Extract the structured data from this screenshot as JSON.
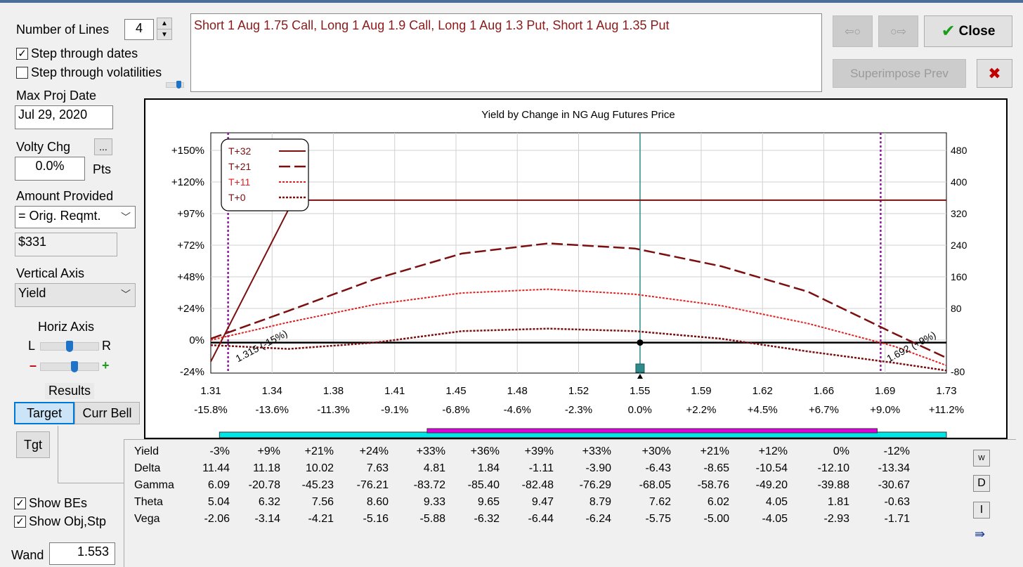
{
  "controls": {
    "number_of_lines_label": "Number of Lines",
    "number_of_lines_value": "4",
    "step_dates_label": "Step through dates",
    "step_dates_checked": true,
    "step_vols_label": "Step through volatilities",
    "step_vols_checked": false,
    "max_proj_date_label": "Max Proj Date",
    "max_proj_date_value": "Jul 29, 2020",
    "volty_chg_label": "Volty Chg",
    "volty_chg_button": "...",
    "volty_chg_value": "0.0%",
    "volty_unit": "Pts",
    "amount_provided_label": "Amount Provided",
    "amount_provided_value": "= Orig. Reqmt.",
    "amount_value": "$331",
    "vertical_axis_label": "Vertical Axis",
    "vertical_axis_value": "Yield",
    "horiz_axis_label": "Horiz Axis",
    "horiz_l": "L",
    "horiz_r": "R",
    "zoom_minus": "–",
    "zoom_plus": "+",
    "results_label": "Results",
    "tab_target": "Target",
    "tab_curr_bell": "Curr Bell",
    "tgt_button": "Tgt",
    "show_bes_label": "Show BEs",
    "show_bes_checked": true,
    "show_obj_label": "Show Obj,Stp",
    "show_obj_checked": true,
    "wand_label": "Wand",
    "wand_value": "1.553",
    "vol_slider_level": 0.8,
    "horiz_slider_level": 0.5,
    "zoom_slider_level": 0.6
  },
  "strategy_description": "Short 1 Aug 1.75 Call, Long 1 Aug 1.9 Call, Long 1 Aug 1.3 Put, Short 1 Aug 1.35 Put",
  "buttons": {
    "prev_arrow": "⇦○",
    "next_arrow": "○⇨",
    "close_label": "Close",
    "superimpose_label": "Superimpose Prev",
    "cancel_icon": "✖"
  },
  "colors": {
    "t32": "#7b0f0f",
    "t21": "#7b0f0f",
    "t11": "#e02020",
    "t0": "#7b0f0f",
    "be_line": "#8e1a9e",
    "center_line": "#2e8b8b",
    "cyan_bar": "#00e5e5",
    "magenta_bar": "#e000e0",
    "green_check": "#1a9e1a",
    "red_x": "#c00000"
  },
  "chart_data": {
    "type": "line",
    "title": "Yield by Change in NG Aug Futures Price",
    "x_ticks": [
      "1.31",
      "1.34",
      "1.38",
      "1.41",
      "1.45",
      "1.48",
      "1.52",
      "1.55",
      "1.59",
      "1.62",
      "1.66",
      "1.69",
      "1.73"
    ],
    "x_pct_ticks": [
      "-15.8%",
      "-13.6%",
      "-11.3%",
      "-9.1%",
      "-6.8%",
      "-4.6%",
      "-2.3%",
      "0.0%",
      "+2.2%",
      "+4.5%",
      "+6.7%",
      "+9.0%",
      "+11.2%"
    ],
    "y_left_ticks": [
      "+150%",
      "+120%",
      "+97%",
      "+72%",
      "+48%",
      "+24%",
      "0%",
      "-24%"
    ],
    "y_right_ticks": [
      "480",
      "400",
      "320",
      "240",
      "160",
      "80",
      "",
      "-80"
    ],
    "xlim": [
      1.305,
      1.73
    ],
    "ylim": [
      -0.24,
      1.65
    ],
    "legend": [
      {
        "name": "T+32",
        "style": "solid"
      },
      {
        "name": "T+21",
        "style": "longdash"
      },
      {
        "name": "T+11",
        "style": "dotted-red"
      },
      {
        "name": "T+0",
        "style": "dotted"
      }
    ],
    "legend_position": "top-left",
    "series": [
      {
        "name": "T+32",
        "x": [
          1.305,
          1.35,
          1.36,
          1.73
        ],
        "y": [
          -0.15,
          1.05,
          1.12,
          1.12
        ]
      },
      {
        "name": "T+21",
        "x": [
          1.305,
          1.35,
          1.4,
          1.45,
          1.5,
          1.55,
          1.6,
          1.65,
          1.7,
          1.73
        ],
        "y": [
          0.03,
          0.25,
          0.5,
          0.7,
          0.78,
          0.74,
          0.6,
          0.4,
          0.07,
          -0.12
        ]
      },
      {
        "name": "T+11",
        "x": [
          1.305,
          1.35,
          1.4,
          1.45,
          1.5,
          1.55,
          1.6,
          1.65,
          1.7,
          1.73
        ],
        "y": [
          0.02,
          0.16,
          0.3,
          0.39,
          0.42,
          0.38,
          0.29,
          0.15,
          -0.03,
          -0.18
        ]
      },
      {
        "name": "T+0",
        "x": [
          1.305,
          1.35,
          1.4,
          1.45,
          1.5,
          1.55,
          1.6,
          1.65,
          1.7,
          1.73
        ],
        "y": [
          -0.02,
          -0.05,
          0.0,
          0.09,
          0.11,
          0.09,
          0.03,
          -0.07,
          -0.16,
          -0.22
        ]
      }
    ],
    "zero_line_y": 0,
    "break_evens": [
      {
        "x": 1.315,
        "label": "1.315 (-15%)"
      },
      {
        "x": 1.692,
        "label": "1.692 (+9%)"
      }
    ],
    "current_price": 1.553,
    "grid": true,
    "range_bars": [
      {
        "name": "cyan",
        "from": 1.31,
        "to": 1.73
      },
      {
        "name": "magenta",
        "from": 1.43,
        "to": 1.69
      }
    ]
  },
  "greeks": {
    "row_labels": [
      "Yield",
      "Delta",
      "Gamma",
      "Theta",
      "Vega"
    ],
    "rows": [
      [
        "-3%",
        "+9%",
        "+21%",
        "+24%",
        "+33%",
        "+36%",
        "+39%",
        "+33%",
        "+30%",
        "+21%",
        "+12%",
        "0%",
        "-12%"
      ],
      [
        "11.44",
        "11.18",
        "10.02",
        "7.63",
        "4.81",
        "1.84",
        "-1.11",
        "-3.90",
        "-6.43",
        "-8.65",
        "-10.54",
        "-12.10",
        "-13.34"
      ],
      [
        "6.09",
        "-20.78",
        "-45.23",
        "-76.21",
        "-83.72",
        "-85.40",
        "-82.48",
        "-76.29",
        "-68.05",
        "-58.76",
        "-49.20",
        "-39.88",
        "-30.67"
      ],
      [
        "5.04",
        "6.32",
        "7.56",
        "8.60",
        "9.33",
        "9.65",
        "9.47",
        "8.79",
        "7.62",
        "6.02",
        "4.05",
        "1.81",
        "-0.63"
      ],
      [
        "-2.06",
        "-3.14",
        "-4.21",
        "-5.16",
        "-5.88",
        "-6.32",
        "-6.44",
        "-6.24",
        "-5.75",
        "-5.00",
        "-4.05",
        "-2.93",
        "-1.71"
      ]
    ],
    "side_buttons": [
      "W",
      "D",
      "I"
    ]
  }
}
